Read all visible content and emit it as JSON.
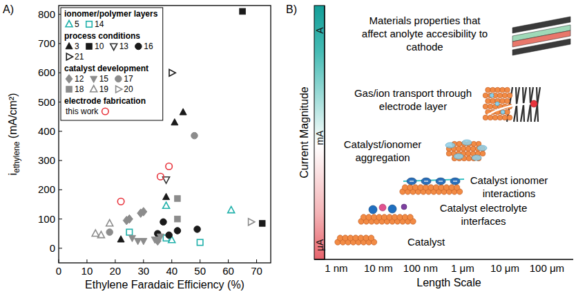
{
  "chart_data": [
    {
      "type": "scatter",
      "panel_label": "A)",
      "x_label": "Ethylene Faradaic Efficiency (%)",
      "y_label": "i",
      "y_label_sub": "ethylene",
      "y_label_unit": " (mA/cm²)",
      "xlim": [
        0,
        75
      ],
      "ylim": [
        -50,
        830
      ],
      "xticks": [
        0,
        10,
        20,
        30,
        40,
        50,
        60,
        70
      ],
      "yticks": [
        0,
        100,
        200,
        300,
        400,
        500,
        600,
        700,
        800
      ],
      "grid": false,
      "legend": "upper left",
      "groups": [
        {
          "title": "ionomer/polymer layers",
          "series": [
            {
              "name": "5",
              "color": "#1fb0aa",
              "marker": "triangle-up-open",
              "x": [
                38,
                40,
                61
              ],
              "values": [
                145,
                28,
                130
              ]
            },
            {
              "name": "14",
              "color": "#1fb0aa",
              "marker": "square-open",
              "x": [
                25,
                38,
                50
              ],
              "values": [
                55,
                35,
                20
              ]
            }
          ]
        },
        {
          "title": "process conditions",
          "series": [
            {
              "name": "3",
              "color": "#1a1a1a",
              "marker": "triangle-up-filled",
              "x": [
                22,
                38,
                41,
                44
              ],
              "values": [
                30,
                175,
                430,
                465
              ]
            },
            {
              "name": "10",
              "color": "#1a1a1a",
              "marker": "square-filled",
              "x": [
                65,
                72
              ],
              "values": [
                810,
                85
              ]
            },
            {
              "name": "13",
              "color": "#333333",
              "marker": "triangle-down-open",
              "x": [
                38
              ],
              "values": [
                235
              ]
            },
            {
              "name": "16",
              "color": "#1a1a1a",
              "marker": "circle-filled",
              "x": [
                35,
                37,
                39,
                42,
                49
              ],
              "values": [
                50,
                90,
                45,
                60,
                65
              ]
            },
            {
              "name": "21",
              "color": "#1a1a1a",
              "marker": "triangle-right-open",
              "x": [
                40
              ],
              "values": [
                600
              ]
            }
          ]
        },
        {
          "title": "catalyst development",
          "series": [
            {
              "name": "12",
              "color": "#8c8c8c",
              "marker": "diamond-filled",
              "x": [
                24,
                25,
                29,
                30,
                35
              ],
              "values": [
                95,
                100,
                120,
                125,
                25
              ]
            },
            {
              "name": "15",
              "color": "#8c8c8c",
              "marker": "triangle-down-filled",
              "x": [
                26,
                28,
                30,
                34,
                36
              ],
              "values": [
                35,
                25,
                25,
                30,
                40
              ]
            },
            {
              "name": "17",
              "color": "#8c8c8c",
              "marker": "circle-filled",
              "x": [
                18,
                48
              ],
              "values": [
                55,
                385
              ]
            },
            {
              "name": "18",
              "color": "#8c8c8c",
              "marker": "square-filled",
              "x": [
                42,
                42
              ],
              "values": [
                170,
                100
              ]
            },
            {
              "name": "19",
              "color": "#8c8c8c",
              "marker": "triangle-up-open",
              "x": [
                13,
                15,
                18
              ],
              "values": [
                50,
                45,
                85
              ]
            },
            {
              "name": "20",
              "color": "#8c8c8c",
              "marker": "triangle-right-open",
              "x": [
                68
              ],
              "values": [
                90
              ]
            }
          ]
        },
        {
          "title": "electrode fabrication",
          "series": [
            {
              "name": "this work",
              "color": "#e8333c",
              "marker": "circle-open",
              "x": [
                22,
                36,
                39
              ],
              "values": [
                160,
                245,
                280
              ]
            }
          ]
        }
      ]
    },
    {
      "type": "diagram",
      "panel_label": "B)",
      "x_label": "Length Scale",
      "y_label": "Current Magnitude",
      "log": true,
      "xlim": [
        0.53,
        420000
      ],
      "xticks": [
        {
          "value": 1,
          "label": "1 nm"
        },
        {
          "value": 10,
          "label": "10 nm"
        },
        {
          "value": 100,
          "label": "100 nm"
        },
        {
          "value": 1000,
          "label": "1 μm"
        },
        {
          "value": 10000,
          "label": "10 μm"
        },
        {
          "value": 100000,
          "label": "100 μm"
        }
      ],
      "ylim": [
        4e-07,
        5
      ],
      "yticks": [
        {
          "value": 1e-06,
          "label": "μA"
        },
        {
          "value": 0.001,
          "label": "mA"
        },
        {
          "value": 1,
          "label": "A"
        }
      ],
      "annotations": [
        {
          "text": "Catalyst"
        },
        {
          "text": "Catalyst electrolyte interfaces"
        },
        {
          "text": "Catalyst ionomer interactions"
        },
        {
          "text": "Catalyst/ionomer aggregation"
        },
        {
          "text": "Gas/ion transport through electrode layer"
        },
        {
          "text": "Materials properties that affect anolyte accesibility to cathode"
        }
      ]
    }
  ]
}
